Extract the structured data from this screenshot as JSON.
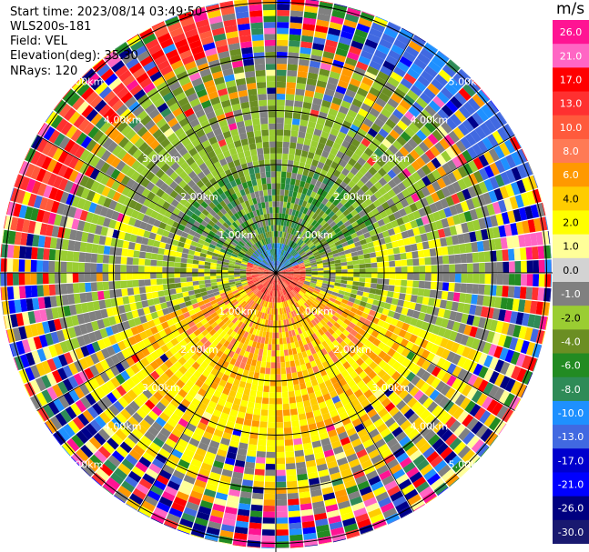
{
  "header": {
    "start_time": "Start time: 2023/08/14 03:49:50",
    "instrument": "WLS200s-181",
    "field": "Field: VEL",
    "elevation": "Elevation(deg): 35.30",
    "nrays": "NRays: 120"
  },
  "colorbar": {
    "unit": "m/s",
    "labels": [
      "26.0",
      "21.0",
      "17.0",
      "13.0",
      "10.0",
      "8.0",
      "6.0",
      "4.0",
      "2.0",
      "1.0",
      "0.0",
      "-1.0",
      "-2.0",
      "-4.0",
      "-6.0",
      "-8.0",
      "-10.0",
      "-13.0",
      "-17.0",
      "-21.0",
      "-26.0",
      "-30.0"
    ],
    "colors": [
      "#ff1493",
      "#ff66c4",
      "#ff0000",
      "#ff3030",
      "#ff5a3c",
      "#ff7a55",
      "#ff9900",
      "#ffcc00",
      "#ffff00",
      "#ffff99",
      "#d3d3d3",
      "#808080",
      "#9acd32",
      "#6b8e23",
      "#228b22",
      "#2e8b57",
      "#1e90ff",
      "#4169e1",
      "#0000cd",
      "#0000ff",
      "#000080",
      "#191970"
    ]
  },
  "chart_data": {
    "type": "ppi",
    "field": "VEL",
    "nrays": 120,
    "range_rings_km": [
      1.0,
      2.0,
      3.0,
      4.0,
      5.0
    ],
    "ring_labels": [
      "1.00km",
      "2.00km",
      "3.00km",
      "4.00km",
      "5.00km"
    ],
    "value_range": [
      -30.0,
      26.0
    ],
    "unit": "m/s"
  }
}
